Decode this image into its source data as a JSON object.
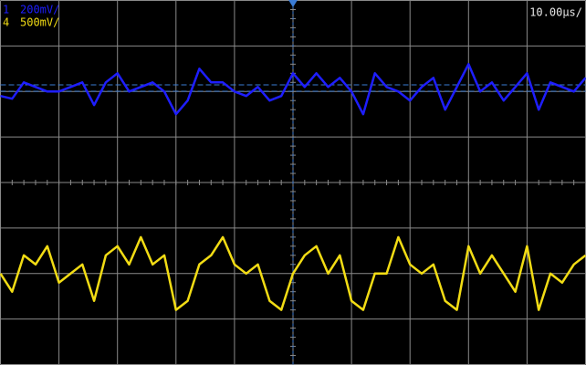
{
  "chart_data": {
    "type": "line",
    "timebase": "10.00µs/",
    "x": [
      0,
      0.2,
      0.4,
      0.6,
      0.8,
      1,
      1.2,
      1.4,
      1.6,
      1.8,
      2,
      2.2,
      2.4,
      2.6,
      2.8,
      3,
      3.2,
      3.4,
      3.6,
      3.8,
      4,
      4.2,
      4.4,
      4.6,
      4.8,
      5,
      5.2,
      5.4,
      5.6,
      5.8,
      6,
      6.2,
      6.4,
      6.6,
      6.8,
      7,
      7.2,
      7.4,
      7.6,
      7.8,
      8,
      8.2,
      8.4,
      8.6,
      8.8,
      9,
      9.2,
      9.4,
      9.6,
      9.8,
      10
    ],
    "series": [
      {
        "name": "1",
        "scale": "200mV/",
        "color": "#1e1eff",
        "values": [
          1.9,
          1.84,
          2.2,
          2.1,
          2,
          2,
          2.1,
          2.2,
          1.7,
          2.2,
          2.4,
          2,
          2.1,
          2.2,
          2,
          1.5,
          1.8,
          2.5,
          2.2,
          2.2,
          2,
          1.9,
          2.1,
          1.8,
          1.9,
          2.4,
          2.1,
          2.4,
          2.1,
          2.3,
          2,
          1.5,
          2.4,
          2.1,
          2,
          1.8,
          2.1,
          2.3,
          1.6,
          2.1,
          2.6,
          2,
          2.2,
          1.8,
          2.1,
          2.4,
          1.6,
          2.2,
          2.1,
          2,
          2.3
        ]
      },
      {
        "name": "4",
        "scale": "500mV/",
        "color": "#f2dc14",
        "values": [
          -2,
          -2.4,
          -1.6,
          -1.8,
          -1.4,
          -2.2,
          -2,
          -1.8,
          -2.6,
          -1.6,
          -1.4,
          -1.8,
          -1.2,
          -1.8,
          -1.6,
          -2.8,
          -2.6,
          -1.8,
          -1.6,
          -1.2,
          -1.8,
          -2,
          -1.8,
          -2.6,
          -2.8,
          -2,
          -1.6,
          -1.4,
          -2,
          -1.6,
          -2.6,
          -2.8,
          -2,
          -2,
          -1.2,
          -1.8,
          -2,
          -1.8,
          -2.6,
          -2.8,
          -1.4,
          -2,
          -1.6,
          -2,
          -2.4,
          -1.4,
          -2.8,
          -2,
          -2.2,
          -1.8,
          -1.6
        ]
      }
    ],
    "xlim": [
      0,
      10
    ],
    "ylim": [
      -4,
      4
    ],
    "xticks": [
      0,
      1,
      2,
      3,
      4,
      5,
      6,
      7,
      8,
      9,
      10
    ],
    "yticks": [
      -4,
      -3,
      -2,
      -1,
      0,
      1,
      2,
      3,
      4
    ],
    "grid": true
  }
}
